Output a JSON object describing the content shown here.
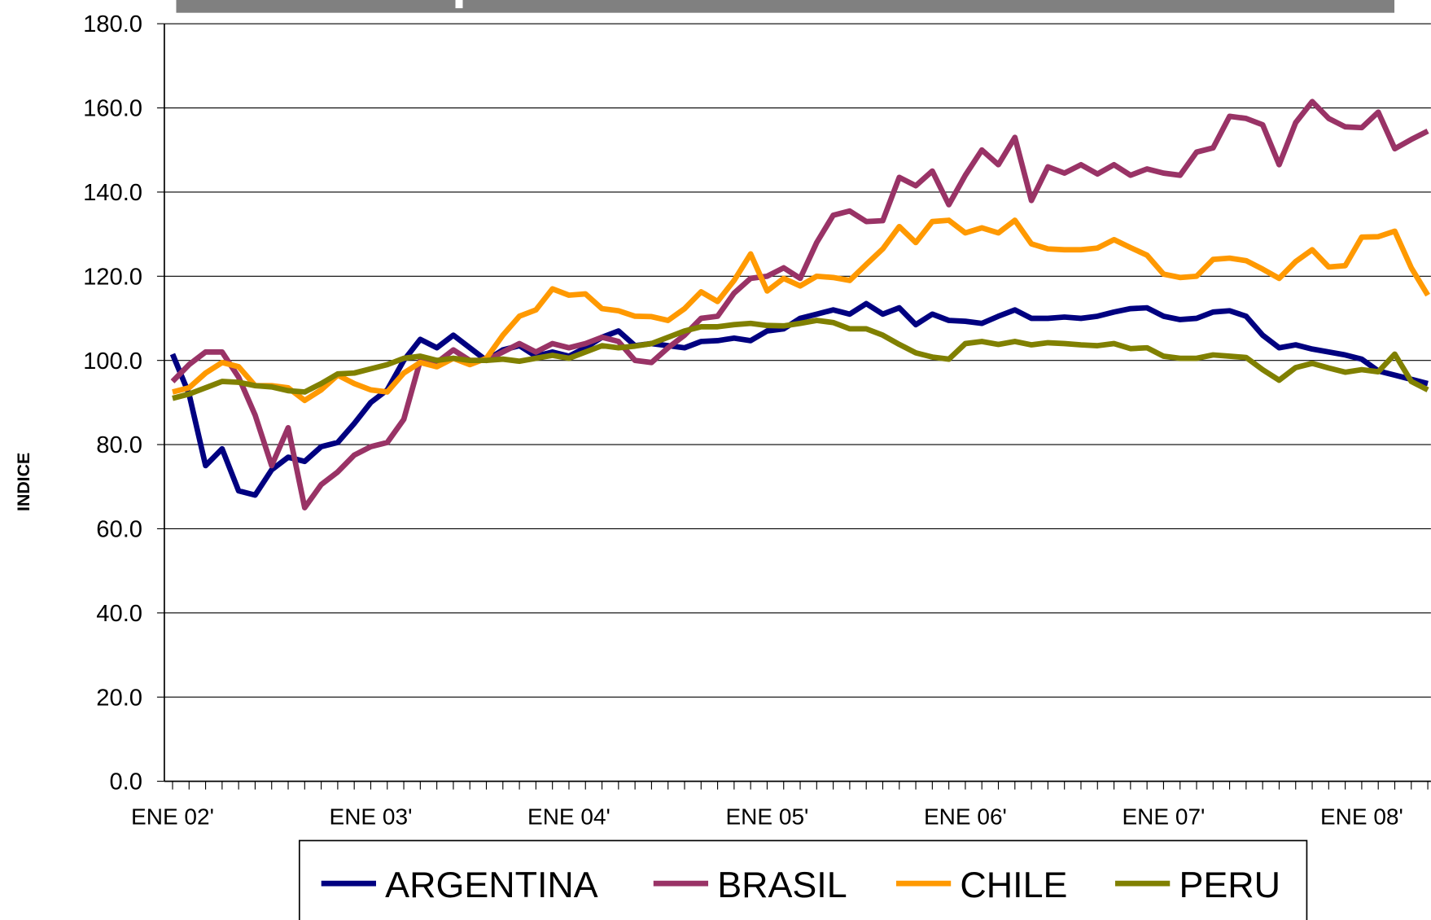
{
  "chart_data": {
    "type": "line",
    "ylabel": "INDICE",
    "categories": [
      "ENE 02'",
      null,
      null,
      null,
      null,
      null,
      null,
      null,
      null,
      null,
      null,
      null,
      "ENE 03'",
      null,
      null,
      null,
      null,
      null,
      null,
      null,
      null,
      null,
      null,
      null,
      "ENE 04'",
      null,
      null,
      null,
      null,
      null,
      null,
      null,
      null,
      null,
      null,
      null,
      "ENE 05'",
      null,
      null,
      null,
      null,
      null,
      null,
      null,
      null,
      null,
      null,
      null,
      "ENE 06'",
      null,
      null,
      null,
      null,
      null,
      null,
      null,
      null,
      null,
      null,
      null,
      "ENE 07'",
      null,
      null,
      null,
      null,
      null,
      null,
      null,
      null,
      null,
      null,
      null,
      "ENE 08'",
      null,
      null,
      null,
      null
    ],
    "series": [
      {
        "name": "ARGENTINA",
        "color": "#000080",
        "values": [
          101.5,
          92,
          75,
          79,
          69,
          68,
          74,
          77,
          76,
          79.5,
          80.5,
          85,
          90,
          93,
          100,
          105,
          103,
          106,
          103,
          100,
          102.5,
          103.5,
          101,
          102,
          101,
          103,
          105.5,
          107,
          103.5,
          104,
          103.5,
          103,
          104.5,
          104.7,
          105.3,
          104.7,
          107,
          107.5,
          110,
          111,
          112,
          111,
          113.5,
          111,
          112.5,
          108.5,
          111,
          109.5,
          109.3,
          108.8,
          110.5,
          112,
          110,
          110,
          110.3,
          110,
          110.5,
          111.5,
          112.3,
          112.5,
          110.5,
          109.7,
          110,
          111.5,
          111.8,
          110.5,
          106,
          103,
          103.7,
          102.7,
          102,
          101.3,
          100.3,
          97.5,
          96.5,
          95.5,
          94.5
        ]
      },
      {
        "name": "BRASIL",
        "color": "#993366",
        "values": [
          95,
          99,
          102,
          102,
          96,
          87,
          75,
          84,
          65,
          70.5,
          73.5,
          77.5,
          79.5,
          80.5,
          86,
          100,
          99.5,
          102.5,
          100,
          100,
          102,
          104,
          102,
          104,
          103,
          104,
          105.5,
          104.5,
          100,
          99.5,
          103,
          106,
          110,
          110.5,
          116,
          119.5,
          120,
          122,
          119.5,
          128,
          134.5,
          135.5,
          133,
          133.2,
          143.5,
          141.5,
          145,
          137,
          144,
          150,
          146.5,
          153,
          138,
          146,
          144.5,
          146.5,
          144.3,
          146.5,
          144,
          145.5,
          144.5,
          144,
          149.5,
          150.5,
          158,
          157.5,
          156,
          146.5,
          156.5,
          161.5,
          157.5,
          155.5,
          155.3,
          159,
          150.3,
          152.5,
          154.5
        ]
      },
      {
        "name": "CHILE",
        "color": "#FF9900",
        "values": [
          92.5,
          93.5,
          97,
          99.5,
          98.5,
          94,
          94,
          93.5,
          90.5,
          93,
          96.5,
          94.5,
          93,
          92.5,
          97,
          99.5,
          98.5,
          100.5,
          99,
          100.5,
          106,
          110.5,
          112,
          117,
          115.5,
          115.8,
          112.3,
          111.8,
          110.5,
          110.4,
          109.5,
          112.3,
          116.3,
          114,
          119,
          125.3,
          116.5,
          119.5,
          117.7,
          120,
          119.7,
          119,
          122.8,
          126.5,
          131.8,
          128,
          133,
          133.3,
          130.3,
          131.5,
          130.3,
          133.3,
          127.7,
          126.5,
          126.3,
          126.3,
          126.7,
          128.7,
          126.8,
          125,
          120.5,
          119.7,
          120,
          124,
          124.3,
          123.7,
          121.7,
          119.5,
          123.5,
          126.3,
          122.2,
          122.5,
          129.3,
          129.4,
          130.7,
          122,
          115.5
        ]
      },
      {
        "name": "PERU",
        "color": "#808000",
        "values": [
          91,
          92,
          93.5,
          95,
          94.8,
          94,
          93.7,
          92.8,
          92.5,
          94.5,
          96.8,
          97,
          98,
          99,
          100.5,
          101,
          100,
          100.5,
          100,
          100,
          100.3,
          99.8,
          100.5,
          101.2,
          100.5,
          102,
          103.5,
          103,
          103.4,
          104,
          105.5,
          107,
          108,
          108,
          108.5,
          108.8,
          108.3,
          108.2,
          108.8,
          109.5,
          109,
          107.5,
          107.5,
          106,
          103.8,
          101.8,
          100.8,
          100.3,
          104,
          104.5,
          103.8,
          104.5,
          103.7,
          104.2,
          104,
          103.7,
          103.5,
          104,
          102.8,
          103,
          101,
          100.5,
          100.5,
          101.3,
          101,
          100.7,
          97.8,
          95.3,
          98.3,
          99.3,
          98.2,
          97.2,
          97.8,
          97.3,
          101.5,
          95,
          93
        ]
      }
    ],
    "ylim": [
      0,
      180
    ],
    "yticks": [
      {
        "value": 0,
        "label": "0.0"
      },
      {
        "value": 20,
        "label": "20.0"
      },
      {
        "value": 40,
        "label": "40.0"
      },
      {
        "value": 60,
        "label": "60.0"
      },
      {
        "value": 80,
        "label": "80.0"
      },
      {
        "value": 100,
        "label": "100.0"
      },
      {
        "value": 120,
        "label": "120.0"
      },
      {
        "value": 140,
        "label": "140.0"
      },
      {
        "value": 160,
        "label": "160.0"
      },
      {
        "value": 180,
        "label": "180.0"
      }
    ],
    "grid": true,
    "legend": "bottom"
  }
}
